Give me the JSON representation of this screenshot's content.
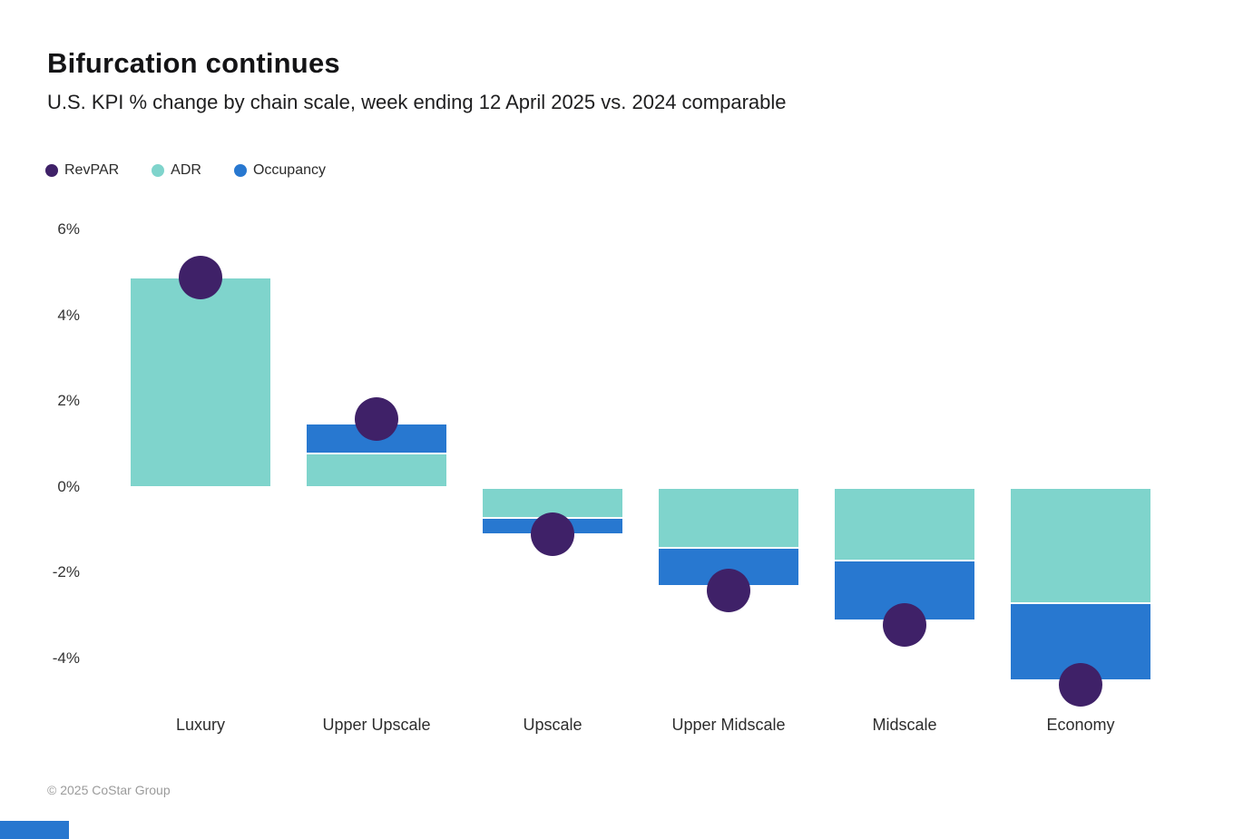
{
  "page": {
    "title": "Bifurcation continues",
    "subtitle": "U.S. KPI % change by chain scale, week ending 12 April 2025 vs. 2024 comparable",
    "footer": "© 2025 CoStar Group"
  },
  "colors": {
    "revpar": "#3F2168",
    "adr": "#7FD4CC",
    "occupancy": "#2878D0",
    "accent_bar": "#2777CF",
    "title_text": "#141416",
    "axis_text": "#333333",
    "footer_text": "#9B9B9B"
  },
  "legend": [
    {
      "label": "RevPAR",
      "color_key": "revpar",
      "marker": "circle"
    },
    {
      "label": "ADR",
      "color_key": "adr",
      "marker": "circle"
    },
    {
      "label": "Occupancy",
      "color_key": "occupancy",
      "marker": "circle"
    }
  ],
  "chart_data": {
    "type": "bar",
    "subtype": "stacked-bars-with-point-overlay",
    "title": "Bifurcation continues",
    "subtitle": "U.S. KPI % change by chain scale, week ending 12 April 2025 vs. 2024 comparable",
    "xlabel": "",
    "ylabel": "",
    "categories": [
      "Luxury",
      "Upper Upscale",
      "Upscale",
      "Upper Midscale",
      "Midscale",
      "Economy"
    ],
    "series": [
      {
        "name": "ADR",
        "render": "bar",
        "color_key": "adr",
        "values": [
          4.9,
          0.8,
          -0.7,
          -1.4,
          -1.7,
          -2.7
        ]
      },
      {
        "name": "Occupancy",
        "render": "bar",
        "color_key": "occupancy",
        "values": [
          0.0,
          0.7,
          -0.4,
          -0.9,
          -1.4,
          -1.8
        ]
      },
      {
        "name": "RevPAR",
        "render": "point",
        "color_key": "revpar",
        "values": [
          4.9,
          1.6,
          -1.1,
          -2.4,
          -3.2,
          -4.6
        ]
      }
    ],
    "unit": "%",
    "yticks": [
      6,
      4,
      2,
      0,
      -2,
      -4
    ],
    "ytick_labels": [
      "6%",
      "4%",
      "2%",
      "0%",
      "-2%",
      "-4%"
    ],
    "ylim": [
      -5.5,
      6.5
    ],
    "grid": false,
    "legend_position": "top-left"
  }
}
